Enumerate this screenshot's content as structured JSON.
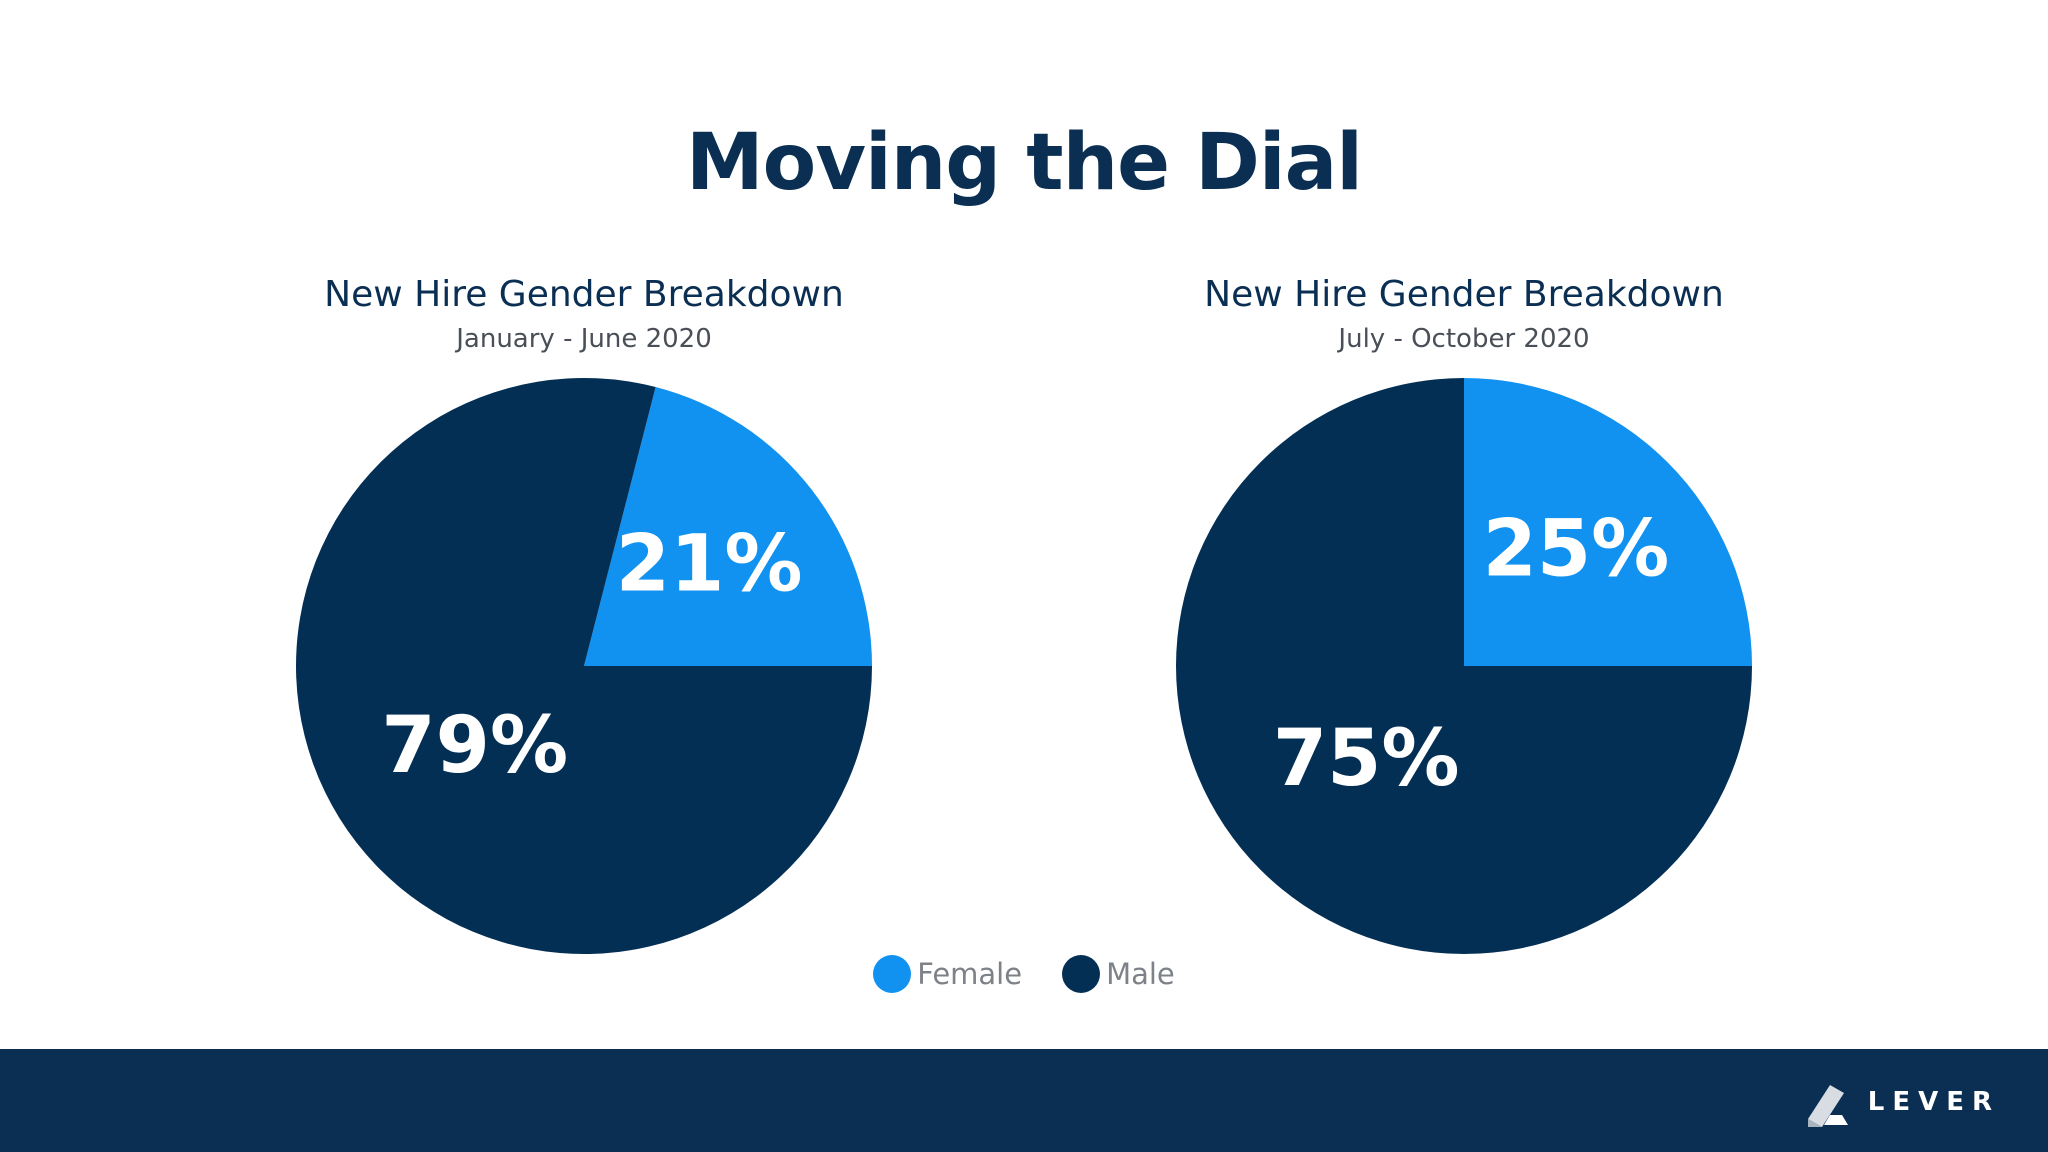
{
  "title": "Moving the Dial",
  "colors": {
    "female": "#1192f0",
    "male": "#042f55",
    "footer": "#0b2f52"
  },
  "legend": [
    {
      "label": "Female",
      "color": "#1192f0"
    },
    {
      "label": "Male",
      "color": "#042f55"
    }
  ],
  "chart_data": [
    {
      "type": "pie",
      "title": "New Hire Gender Breakdown",
      "subtitle": "January - June 2020",
      "slices": [
        {
          "label": "Female",
          "value": 21,
          "display": "21%"
        },
        {
          "label": "Male",
          "value": 79,
          "display": "79%"
        }
      ]
    },
    {
      "type": "pie",
      "title": "New Hire Gender Breakdown",
      "subtitle": "July - October 2020",
      "slices": [
        {
          "label": "Female",
          "value": 25,
          "display": "25%"
        },
        {
          "label": "Male",
          "value": 75,
          "display": "75%"
        }
      ]
    }
  ],
  "footer": {
    "logo_text": "LEVER",
    "logo_icon": "lever-logo-icon"
  }
}
